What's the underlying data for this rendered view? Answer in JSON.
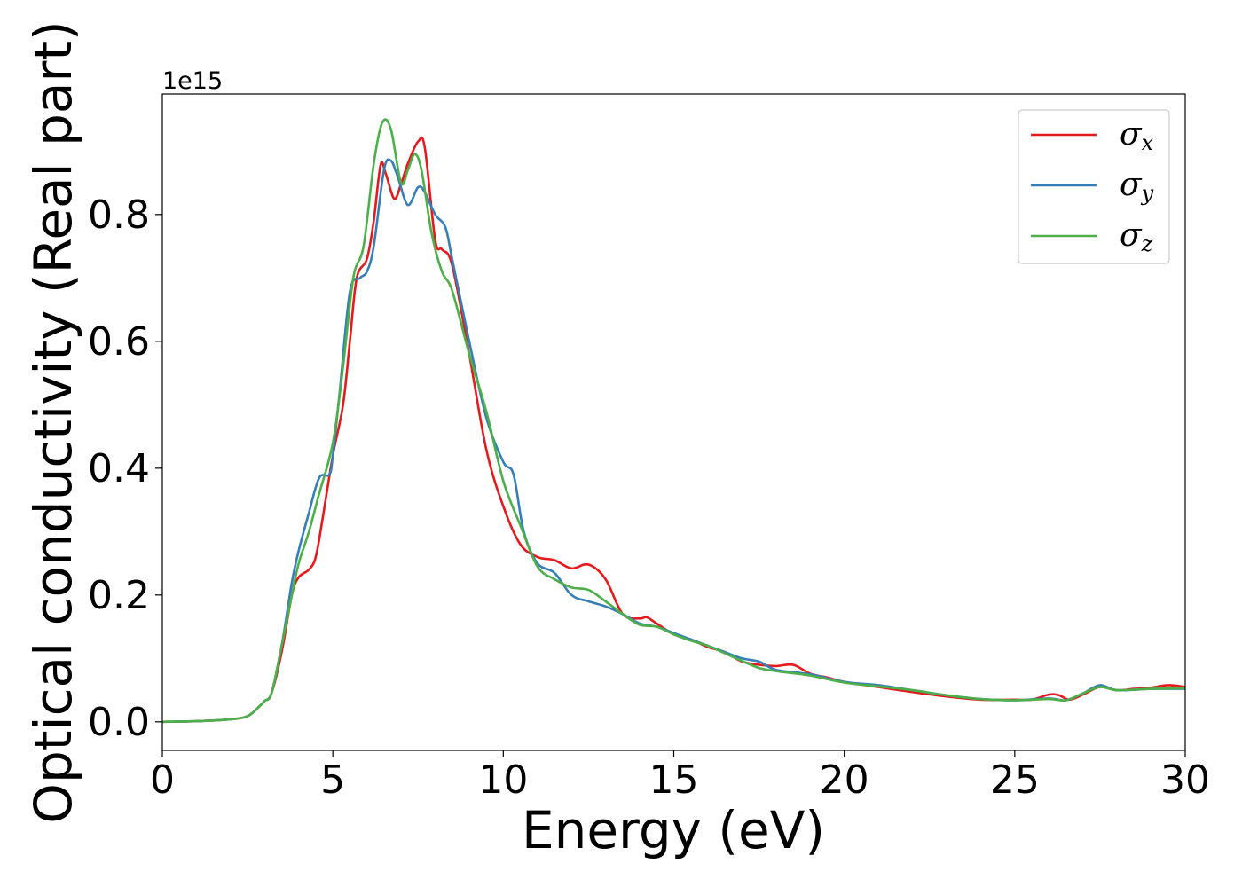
{
  "chart_data": {
    "type": "line",
    "xlabel": "Energy (eV)",
    "ylabel": "Optical conductivity (Real part)",
    "y_offset_label": "1e15",
    "xlim": [
      0,
      30
    ],
    "ylim": [
      -0.045,
      0.99
    ],
    "xticks": [
      0,
      5,
      10,
      15,
      20,
      25,
      30
    ],
    "yticks": [
      0.0,
      0.2,
      0.4,
      0.6,
      0.8
    ],
    "xtick_labels": [
      "0",
      "5",
      "10",
      "15",
      "20",
      "25",
      "30"
    ],
    "ytick_labels": [
      "0.0",
      "0.2",
      "0.4",
      "0.6",
      "0.8"
    ],
    "grid": false,
    "legend_position": "top-right",
    "series": [
      {
        "name": "σx",
        "legend_base": "σ",
        "legend_sub": "x",
        "color": "#e41a1c",
        "points": [
          [
            0,
            0
          ],
          [
            1,
            0.001
          ],
          [
            2,
            0.004
          ],
          [
            2.5,
            0.009
          ],
          [
            2.8,
            0.022
          ],
          [
            3.0,
            0.033
          ],
          [
            3.2,
            0.045
          ],
          [
            3.5,
            0.11
          ],
          [
            3.8,
            0.2
          ],
          [
            4.0,
            0.228
          ],
          [
            4.3,
            0.24
          ],
          [
            4.5,
            0.26
          ],
          [
            4.7,
            0.32
          ],
          [
            5.0,
            0.42
          ],
          [
            5.3,
            0.5
          ],
          [
            5.5,
            0.6
          ],
          [
            5.7,
            0.7
          ],
          [
            6.0,
            0.73
          ],
          [
            6.2,
            0.79
          ],
          [
            6.4,
            0.878
          ],
          [
            6.55,
            0.865
          ],
          [
            6.8,
            0.825
          ],
          [
            7.0,
            0.848
          ],
          [
            7.2,
            0.88
          ],
          [
            7.5,
            0.915
          ],
          [
            7.7,
            0.905
          ],
          [
            8.0,
            0.76
          ],
          [
            8.2,
            0.745
          ],
          [
            8.5,
            0.72
          ],
          [
            9.0,
            0.58
          ],
          [
            9.5,
            0.43
          ],
          [
            10.0,
            0.34
          ],
          [
            10.5,
            0.28
          ],
          [
            11.0,
            0.26
          ],
          [
            11.5,
            0.255
          ],
          [
            12.0,
            0.242
          ],
          [
            12.5,
            0.248
          ],
          [
            13.0,
            0.225
          ],
          [
            13.5,
            0.17
          ],
          [
            14.0,
            0.163
          ],
          [
            14.2,
            0.165
          ],
          [
            14.5,
            0.155
          ],
          [
            15.0,
            0.138
          ],
          [
            15.5,
            0.13
          ],
          [
            16.0,
            0.118
          ],
          [
            16.5,
            0.11
          ],
          [
            17.0,
            0.095
          ],
          [
            17.5,
            0.09
          ],
          [
            18.0,
            0.088
          ],
          [
            18.5,
            0.09
          ],
          [
            19.0,
            0.076
          ],
          [
            19.5,
            0.07
          ],
          [
            20.0,
            0.063
          ],
          [
            21.0,
            0.055
          ],
          [
            22.0,
            0.047
          ],
          [
            23.0,
            0.04
          ],
          [
            24.0,
            0.035
          ],
          [
            25.0,
            0.035
          ],
          [
            25.5,
            0.035
          ],
          [
            26.0,
            0.043
          ],
          [
            26.3,
            0.042
          ],
          [
            26.6,
            0.035
          ],
          [
            27.0,
            0.043
          ],
          [
            27.5,
            0.055
          ],
          [
            28.0,
            0.05
          ],
          [
            28.5,
            0.052
          ],
          [
            29.0,
            0.054
          ],
          [
            29.5,
            0.058
          ],
          [
            30.0,
            0.055
          ]
        ]
      },
      {
        "name": "σy",
        "legend_base": "σ",
        "legend_sub": "y",
        "color": "#377eb8",
        "points": [
          [
            0,
            0
          ],
          [
            1,
            0.001
          ],
          [
            2,
            0.004
          ],
          [
            2.5,
            0.009
          ],
          [
            2.8,
            0.022
          ],
          [
            3.0,
            0.033
          ],
          [
            3.2,
            0.045
          ],
          [
            3.5,
            0.12
          ],
          [
            3.8,
            0.22
          ],
          [
            4.0,
            0.27
          ],
          [
            4.3,
            0.33
          ],
          [
            4.6,
            0.385
          ],
          [
            4.9,
            0.39
          ],
          [
            5.0,
            0.42
          ],
          [
            5.2,
            0.52
          ],
          [
            5.5,
            0.678
          ],
          [
            5.8,
            0.7
          ],
          [
            6.0,
            0.71
          ],
          [
            6.2,
            0.75
          ],
          [
            6.5,
            0.87
          ],
          [
            6.7,
            0.885
          ],
          [
            6.9,
            0.86
          ],
          [
            7.2,
            0.815
          ],
          [
            7.5,
            0.843
          ],
          [
            7.7,
            0.835
          ],
          [
            8.0,
            0.8
          ],
          [
            8.3,
            0.78
          ],
          [
            8.5,
            0.73
          ],
          [
            9.0,
            0.6
          ],
          [
            9.5,
            0.48
          ],
          [
            10.0,
            0.41
          ],
          [
            10.3,
            0.39
          ],
          [
            10.6,
            0.3
          ],
          [
            11.0,
            0.25
          ],
          [
            11.5,
            0.235
          ],
          [
            12.0,
            0.2
          ],
          [
            12.5,
            0.19
          ],
          [
            13.0,
            0.182
          ],
          [
            13.5,
            0.17
          ],
          [
            14.0,
            0.155
          ],
          [
            14.5,
            0.15
          ],
          [
            15.0,
            0.14
          ],
          [
            15.5,
            0.13
          ],
          [
            16.0,
            0.12
          ],
          [
            16.5,
            0.11
          ],
          [
            17.0,
            0.1
          ],
          [
            17.5,
            0.095
          ],
          [
            18.0,
            0.082
          ],
          [
            19.0,
            0.075
          ],
          [
            20.0,
            0.063
          ],
          [
            21.0,
            0.058
          ],
          [
            22.0,
            0.05
          ],
          [
            23.0,
            0.042
          ],
          [
            24.0,
            0.036
          ],
          [
            25.0,
            0.034
          ],
          [
            26.0,
            0.037
          ],
          [
            26.5,
            0.034
          ],
          [
            27.0,
            0.045
          ],
          [
            27.5,
            0.058
          ],
          [
            28.0,
            0.05
          ],
          [
            29.0,
            0.052
          ],
          [
            30.0,
            0.052
          ]
        ]
      },
      {
        "name": "σz",
        "legend_base": "σ",
        "legend_sub": "z",
        "color": "#4daf4a",
        "points": [
          [
            0,
            0
          ],
          [
            1,
            0.001
          ],
          [
            2,
            0.004
          ],
          [
            2.5,
            0.009
          ],
          [
            2.8,
            0.022
          ],
          [
            3.0,
            0.033
          ],
          [
            3.2,
            0.045
          ],
          [
            3.5,
            0.12
          ],
          [
            3.8,
            0.2
          ],
          [
            4.0,
            0.25
          ],
          [
            4.3,
            0.3
          ],
          [
            4.6,
            0.36
          ],
          [
            5.0,
            0.44
          ],
          [
            5.3,
            0.56
          ],
          [
            5.6,
            0.7
          ],
          [
            5.9,
            0.75
          ],
          [
            6.2,
            0.88
          ],
          [
            6.45,
            0.945
          ],
          [
            6.7,
            0.935
          ],
          [
            7.0,
            0.85
          ],
          [
            7.2,
            0.87
          ],
          [
            7.4,
            0.895
          ],
          [
            7.6,
            0.87
          ],
          [
            7.9,
            0.77
          ],
          [
            8.2,
            0.71
          ],
          [
            8.5,
            0.68
          ],
          [
            9.0,
            0.58
          ],
          [
            9.5,
            0.49
          ],
          [
            10.0,
            0.38
          ],
          [
            10.5,
            0.31
          ],
          [
            11.0,
            0.245
          ],
          [
            11.5,
            0.225
          ],
          [
            12.0,
            0.212
          ],
          [
            12.5,
            0.208
          ],
          [
            13.0,
            0.19
          ],
          [
            13.5,
            0.17
          ],
          [
            14.0,
            0.153
          ],
          [
            14.5,
            0.15
          ],
          [
            15.0,
            0.138
          ],
          [
            15.5,
            0.128
          ],
          [
            16.0,
            0.12
          ],
          [
            16.5,
            0.108
          ],
          [
            17.0,
            0.096
          ],
          [
            17.5,
            0.085
          ],
          [
            18.0,
            0.08
          ],
          [
            19.0,
            0.073
          ],
          [
            20.0,
            0.062
          ],
          [
            21.0,
            0.056
          ],
          [
            22.0,
            0.05
          ],
          [
            23.0,
            0.042
          ],
          [
            24.0,
            0.036
          ],
          [
            25.0,
            0.034
          ],
          [
            26.0,
            0.036
          ],
          [
            26.5,
            0.034
          ],
          [
            27.0,
            0.045
          ],
          [
            27.5,
            0.055
          ],
          [
            28.0,
            0.05
          ],
          [
            29.0,
            0.052
          ],
          [
            30.0,
            0.053
          ]
        ]
      }
    ]
  }
}
